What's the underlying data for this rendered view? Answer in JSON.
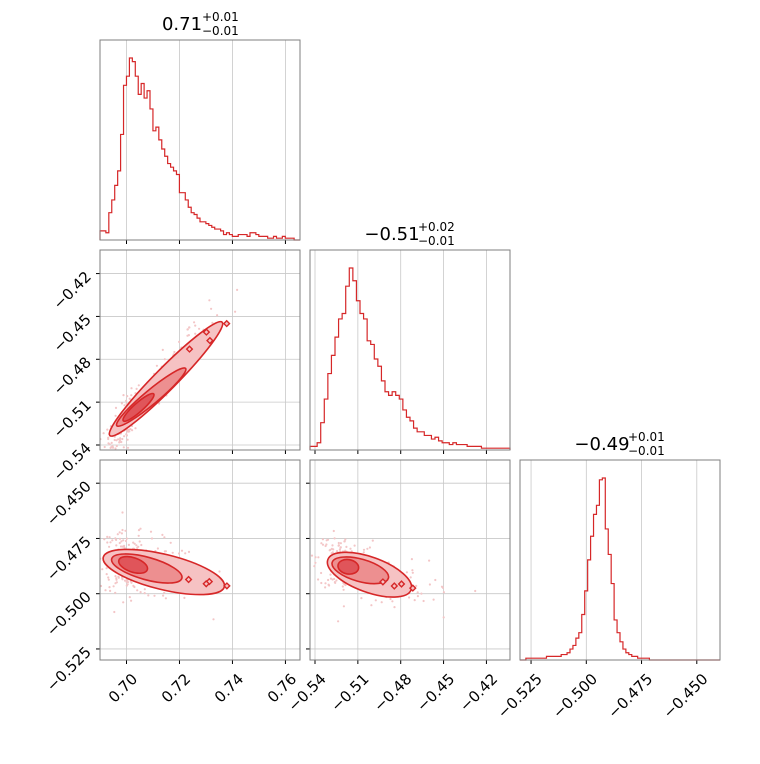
{
  "chart_data": {
    "type": "corner",
    "parameters": [
      {
        "title": {
          "main": "0.71",
          "sup": "+0.01",
          "sub": "−0.01"
        },
        "tick_labels": [
          "0.70",
          "0.72",
          "0.74",
          "0.76"
        ],
        "tick_values": [
          0.7,
          0.72,
          0.74,
          0.76
        ],
        "range": [
          0.69,
          0.7655
        ]
      },
      {
        "title": {
          "main": "−0.51",
          "sup": "+0.02",
          "sub": "−0.01"
        },
        "tick_labels": [
          "−0.54",
          "−0.51",
          "−0.48",
          "−0.45",
          "−0.42"
        ],
        "tick_values": [
          -0.54,
          -0.51,
          -0.48,
          -0.45,
          -0.42
        ],
        "range": [
          -0.5435,
          -0.4035
        ]
      },
      {
        "title": {
          "main": "−0.49",
          "sup": "+0.01",
          "sub": "−0.01"
        },
        "tick_labels": [
          "−0.525",
          "−0.500",
          "−0.475",
          "−0.450"
        ],
        "tick_values": [
          -0.525,
          -0.5,
          -0.475,
          -0.45
        ],
        "range": [
          -0.53,
          -0.4395
        ]
      }
    ],
    "histograms": [
      [
        0.05,
        0.05,
        0.04,
        0.15,
        0.22,
        0.3,
        0.38,
        0.58,
        0.85,
        0.9,
        1.0,
        0.98,
        0.9,
        0.8,
        0.86,
        0.78,
        0.82,
        0.72,
        0.6,
        0.62,
        0.55,
        0.5,
        0.46,
        0.42,
        0.4,
        0.38,
        0.36,
        0.26,
        0.26,
        0.22,
        0.18,
        0.15,
        0.14,
        0.12,
        0.1,
        0.1,
        0.09,
        0.08,
        0.07,
        0.06,
        0.06,
        0.05,
        0.03,
        0.04,
        0.03,
        0.02,
        0.02,
        0.03,
        0.03,
        0.03,
        0.02,
        0.04,
        0.04,
        0.03,
        0.02,
        0.02,
        0.02,
        0.01,
        0.01,
        0.02,
        0.01,
        0.01,
        0.02,
        0.01,
        0.01,
        0.01,
        0.0,
        0.0
      ],
      [
        0.02,
        0.02,
        0.04,
        0.15,
        0.28,
        0.42,
        0.52,
        0.62,
        0.72,
        0.75,
        0.9,
        1.0,
        0.93,
        0.82,
        0.75,
        0.72,
        0.6,
        0.58,
        0.5,
        0.46,
        0.38,
        0.32,
        0.3,
        0.32,
        0.3,
        0.28,
        0.22,
        0.18,
        0.16,
        0.12,
        0.1,
        0.1,
        0.08,
        0.08,
        0.06,
        0.07,
        0.05,
        0.04,
        0.04,
        0.03,
        0.04,
        0.03,
        0.03,
        0.03,
        0.02,
        0.02,
        0.02,
        0.02,
        0.01,
        0.01,
        0.01,
        0.01,
        0.01,
        0.01,
        0.01,
        0.01
      ],
      [
        0.0,
        0.0,
        0.01,
        0.01,
        0.01,
        0.01,
        0.01,
        0.01,
        0.01,
        0.02,
        0.02,
        0.02,
        0.02,
        0.02,
        0.03,
        0.03,
        0.04,
        0.06,
        0.08,
        0.12,
        0.15,
        0.25,
        0.38,
        0.55,
        0.68,
        0.8,
        0.85,
        0.99,
        1.0,
        0.72,
        0.58,
        0.42,
        0.22,
        0.15,
        0.1,
        0.06,
        0.04,
        0.03,
        0.02,
        0.02,
        0.01,
        0.01,
        0.01,
        0.01,
        0.0,
        0.0,
        0.0,
        0.0,
        0.0,
        0.0,
        0.0,
        0.0,
        0.0,
        0.0,
        0.0,
        0.0,
        0.0,
        0.0,
        0.0,
        0.0,
        0.0,
        0.0,
        0.0,
        0.0,
        0.0,
        0.0,
        0.0,
        0.0
      ]
    ],
    "joint": [
      {
        "x": 0,
        "y": 1,
        "center": [
          0.7022,
          -0.5175
        ],
        "spread": [
          0.0075,
          0.018
        ],
        "rho": 0.93,
        "levels": [
          [
            0.712,
            -0.497
          ],
          [
            0.706,
            -0.506
          ],
          [
            0.702,
            -0.515
          ]
        ],
        "extents": [
          [
            0.734,
            -0.458
          ],
          [
            0.72,
            -0.49
          ],
          [
            0.708,
            -0.508
          ]
        ]
      },
      {
        "x": 0,
        "y": 2,
        "center": [
          0.7008,
          -0.4863
        ],
        "spread": [
          0.0075,
          0.006
        ],
        "rho": -0.3,
        "levels": [
          [
            0.725,
            -0.487
          ],
          [
            0.714,
            -0.489
          ],
          [
            0.7045,
            -0.488
          ]
        ],
        "extents": [
          [
            0.734,
            -0.496
          ],
          [
            0.718,
            -0.492
          ],
          [
            0.705,
            -0.488
          ]
        ]
      },
      {
        "x": 1,
        "y": 2,
        "center": [
          -0.5178,
          -0.4877
        ],
        "spread": [
          0.015,
          0.006
        ],
        "rho": -0.45,
        "levels": [
          [
            -0.483,
            -0.494
          ],
          [
            -0.499,
            -0.492
          ],
          [
            -0.512,
            -0.489
          ]
        ],
        "extents": [
          [
            -0.478,
            -0.497
          ],
          [
            -0.494,
            -0.492
          ],
          [
            -0.515,
            -0.488
          ]
        ]
      }
    ],
    "colors": {
      "line": "#d62728",
      "fill_outer": "#f6c2c3",
      "fill_mid": "#ed8f90",
      "fill_inner": "#e0555a",
      "scatter": "#f3c6c7",
      "grid": "#c8c8c8",
      "frame": "#7f7f7f"
    },
    "grid": true
  }
}
